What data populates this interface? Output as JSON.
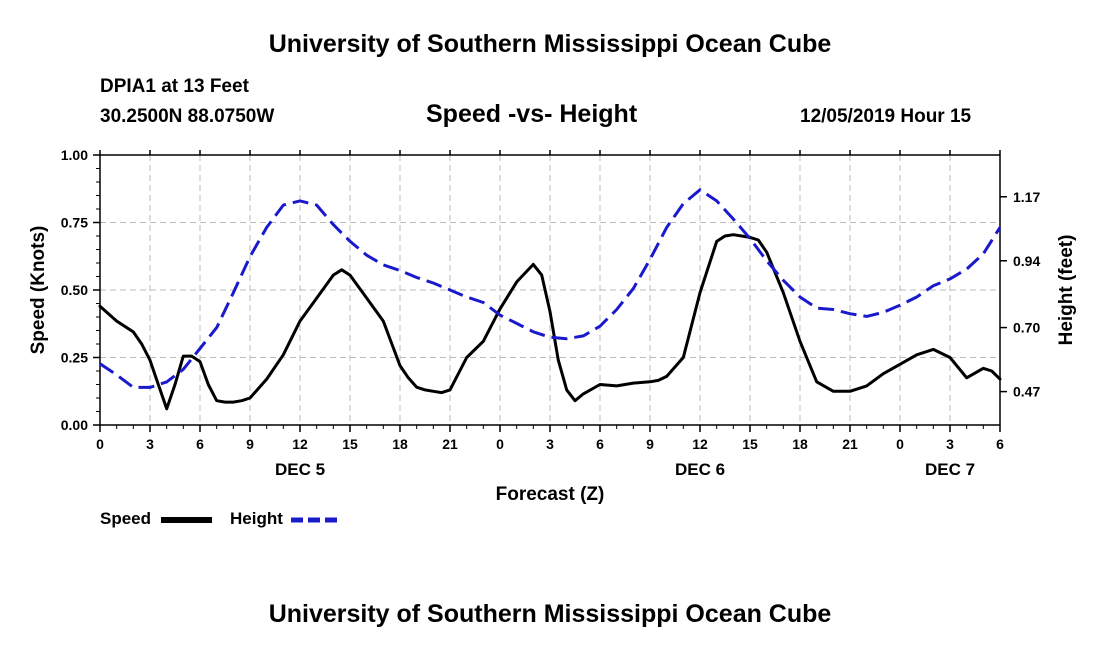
{
  "header": {
    "org_title": "University of Southern Mississippi Ocean Cube",
    "station": "DPIA1 at 13 Feet",
    "coords": "30.2500N 88.0750W",
    "datetime": "12/05/2019 Hour 15"
  },
  "footer": {
    "org_title": "University of Southern Mississippi Ocean Cube"
  },
  "legend": {
    "speed_label": "Speed",
    "height_label": "Height"
  },
  "colors": {
    "speed": "#000000",
    "height": "#1a1acd",
    "grid": "#bbbbbb"
  },
  "chart_data": {
    "type": "line",
    "title": "Speed -vs- Height",
    "xlabel": "Forecast (Z)",
    "ylabel": "Speed (Knots)",
    "y2label": "Height (feet)",
    "xlim": [
      0,
      54
    ],
    "ylim": [
      0,
      1
    ],
    "y2lim": [
      0.35,
      1.32
    ],
    "x_ticks": [
      0,
      3,
      6,
      9,
      12,
      15,
      18,
      21,
      24,
      27,
      30,
      33,
      36,
      39,
      42,
      45,
      48,
      51,
      54
    ],
    "x_tick_labels": [
      "0",
      "3",
      "6",
      "9",
      "12",
      "15",
      "18",
      "21",
      "0",
      "3",
      "6",
      "9",
      "12",
      "15",
      "18",
      "21",
      "0",
      "3",
      "6"
    ],
    "day_labels": [
      {
        "x": 12,
        "label": "DEC 5"
      },
      {
        "x": 36,
        "label": "DEC 6"
      },
      {
        "x": 51,
        "label": "DEC 7"
      }
    ],
    "y_ticks": [
      0,
      0.25,
      0.5,
      0.75,
      1.0
    ],
    "y_tick_labels": [
      "0.00",
      "0.25",
      "0.50",
      "0.75",
      "1.00"
    ],
    "y2_ticks": [
      0.47,
      0.7,
      0.94,
      1.17
    ],
    "y2_tick_labels": [
      "0.47",
      "0.70",
      "0.94",
      "1.17"
    ],
    "series": [
      {
        "name": "Speed",
        "axis": "left",
        "style": "solid",
        "x": [
          0,
          1,
          2,
          2.5,
          3,
          3.5,
          4,
          4.5,
          5,
          5.5,
          6,
          6.5,
          7,
          7.5,
          8,
          8.5,
          9,
          10,
          11,
          12,
          13,
          14,
          14.5,
          15,
          16,
          17,
          18,
          18.5,
          19,
          19.5,
          20,
          20.5,
          21,
          22,
          23,
          24,
          25,
          26,
          26.5,
          27,
          27.5,
          28,
          28.5,
          29,
          30,
          31,
          32,
          33,
          33.5,
          34,
          35,
          36,
          37,
          37.5,
          38,
          38.5,
          39,
          39.5,
          40,
          41,
          42,
          43,
          44,
          45,
          46,
          47,
          48,
          49,
          50,
          51,
          52,
          53,
          53.5,
          54
        ],
        "values": [
          0.44,
          0.385,
          0.345,
          0.3,
          0.24,
          0.15,
          0.06,
          0.15,
          0.255,
          0.255,
          0.235,
          0.15,
          0.09,
          0.085,
          0.085,
          0.09,
          0.1,
          0.17,
          0.26,
          0.385,
          0.47,
          0.555,
          0.575,
          0.555,
          0.47,
          0.385,
          0.22,
          0.175,
          0.14,
          0.13,
          0.125,
          0.12,
          0.13,
          0.25,
          0.31,
          0.43,
          0.53,
          0.595,
          0.555,
          0.42,
          0.24,
          0.13,
          0.09,
          0.115,
          0.15,
          0.145,
          0.155,
          0.16,
          0.165,
          0.18,
          0.25,
          0.49,
          0.68,
          0.7,
          0.705,
          0.7,
          0.695,
          0.685,
          0.64,
          0.49,
          0.31,
          0.16,
          0.125,
          0.125,
          0.145,
          0.19,
          0.225,
          0.26,
          0.28,
          0.25,
          0.175,
          0.21,
          0.2,
          0.17
        ]
      },
      {
        "name": "Height",
        "axis": "right",
        "style": "dashed",
        "x": [
          0,
          1,
          2,
          3,
          4,
          5,
          6,
          7,
          8,
          9,
          10,
          11,
          12,
          13,
          14,
          15,
          16,
          17,
          18,
          19,
          20,
          21,
          22,
          23,
          24,
          25,
          26,
          27,
          28,
          29,
          30,
          31,
          32,
          33,
          34,
          35,
          36,
          37,
          38,
          39,
          40,
          41,
          42,
          43,
          44,
          45,
          46,
          47,
          48,
          49,
          50,
          51,
          52,
          53,
          54
        ],
        "values": [
          0.57,
          0.53,
          0.485,
          0.485,
          0.505,
          0.55,
          0.625,
          0.7,
          0.825,
          0.955,
          1.06,
          1.14,
          1.155,
          1.14,
          1.07,
          1.01,
          0.96,
          0.925,
          0.905,
          0.88,
          0.86,
          0.835,
          0.81,
          0.79,
          0.745,
          0.715,
          0.685,
          0.665,
          0.66,
          0.67,
          0.705,
          0.765,
          0.84,
          0.945,
          1.06,
          1.145,
          1.195,
          1.155,
          1.09,
          1.02,
          0.94,
          0.87,
          0.81,
          0.77,
          0.765,
          0.75,
          0.74,
          0.755,
          0.78,
          0.81,
          0.85,
          0.875,
          0.91,
          0.965,
          1.06
        ]
      }
    ]
  }
}
